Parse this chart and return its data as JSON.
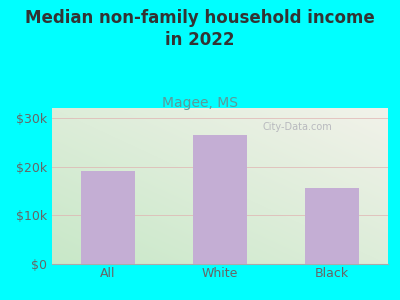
{
  "title": "Median non-family household income\nin 2022",
  "subtitle": "Magee, MS",
  "categories": [
    "All",
    "White",
    "Black"
  ],
  "values": [
    19000,
    26500,
    15500
  ],
  "bar_color": "#c4aed4",
  "background_color": "#00FFFF",
  "plot_bg_color_topleft": "#daeeda",
  "plot_bg_color_topright": "#f0f0e8",
  "plot_bg_color_bottomleft": "#c8e8c8",
  "plot_bg_color_bottomright": "#e8e8e0",
  "title_color": "#333333",
  "subtitle_color": "#5a9a9a",
  "tick_color": "#666666",
  "grid_color": "#e0b0b0",
  "ylim": [
    0,
    32000
  ],
  "yticks": [
    0,
    10000,
    20000,
    30000
  ],
  "ytick_labels": [
    "$0",
    "$10k",
    "$20k",
    "$30k"
  ],
  "title_fontsize": 12,
  "subtitle_fontsize": 10,
  "tick_fontsize": 9,
  "watermark": "City-Data.com"
}
